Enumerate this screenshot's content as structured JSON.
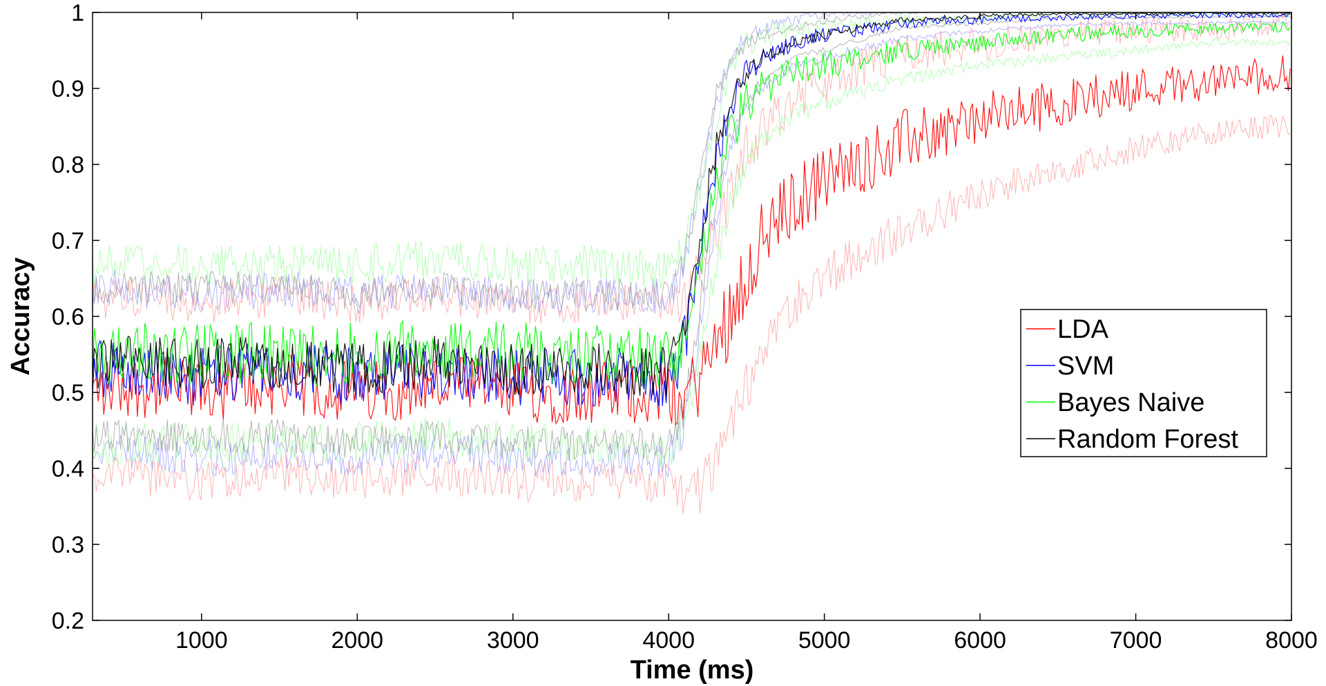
{
  "chart_data": {
    "type": "line",
    "title": "",
    "xlabel": "Time (ms)",
    "ylabel": "Accuracy",
    "xlim": [
      300,
      8000
    ],
    "ylim": [
      0.2,
      1.0
    ],
    "xticks": [
      1000,
      2000,
      3000,
      4000,
      5000,
      6000,
      7000,
      8000
    ],
    "xtick_labels": [
      "1000",
      "2000",
      "3000",
      "4000",
      "5000",
      "6000",
      "7000",
      "8000"
    ],
    "yticks": [
      0.2,
      0.3,
      0.4,
      0.5,
      0.6,
      0.7,
      0.8,
      0.9,
      1.0
    ],
    "ytick_labels": [
      "0.2",
      "0.3",
      "0.4",
      "0.5",
      "0.6",
      "0.7",
      "0.8",
      "0.9",
      "1"
    ],
    "grid": false,
    "legend_position": "right",
    "x": [
      300,
      500,
      1000,
      1500,
      2000,
      2500,
      3000,
      3500,
      4000,
      4100,
      4200,
      4300,
      4400,
      4500,
      4600,
      4800,
      5000,
      5500,
      6000,
      6500,
      7000,
      7500,
      8000
    ],
    "series": [
      {
        "name": "LDA",
        "color": "#ff0000",
        "band_color": "#ff9a9a",
        "values": [
          0.5,
          0.51,
          0.5,
          0.51,
          0.5,
          0.51,
          0.5,
          0.5,
          0.5,
          0.49,
          0.52,
          0.56,
          0.61,
          0.66,
          0.7,
          0.75,
          0.78,
          0.83,
          0.86,
          0.88,
          0.9,
          0.91,
          0.92
        ],
        "spread": [
          0.12,
          0.12,
          0.12,
          0.12,
          0.12,
          0.12,
          0.12,
          0.12,
          0.12,
          0.13,
          0.15,
          0.16,
          0.16,
          0.16,
          0.15,
          0.14,
          0.13,
          0.12,
          0.1,
          0.09,
          0.08,
          0.07,
          0.07
        ]
      },
      {
        "name": "SVM",
        "color": "#0000ff",
        "band_color": "#9a9aff",
        "values": [
          0.53,
          0.53,
          0.52,
          0.53,
          0.52,
          0.53,
          0.52,
          0.52,
          0.52,
          0.56,
          0.68,
          0.8,
          0.88,
          0.92,
          0.94,
          0.96,
          0.97,
          0.985,
          0.99,
          0.993,
          0.995,
          0.996,
          0.997
        ],
        "spread": [
          0.11,
          0.11,
          0.11,
          0.11,
          0.11,
          0.11,
          0.11,
          0.11,
          0.11,
          0.11,
          0.1,
          0.08,
          0.06,
          0.05,
          0.04,
          0.03,
          0.03,
          0.02,
          0.015,
          0.01,
          0.01,
          0.01,
          0.01
        ]
      },
      {
        "name": "Bayes Naive",
        "color": "#00ff00",
        "band_color": "#9aff9a",
        "values": [
          0.55,
          0.55,
          0.55,
          0.55,
          0.55,
          0.56,
          0.55,
          0.55,
          0.54,
          0.57,
          0.66,
          0.76,
          0.84,
          0.88,
          0.9,
          0.92,
          0.93,
          0.95,
          0.96,
          0.97,
          0.975,
          0.98,
          0.98
        ],
        "spread": [
          0.12,
          0.12,
          0.12,
          0.12,
          0.12,
          0.12,
          0.12,
          0.12,
          0.12,
          0.12,
          0.11,
          0.1,
          0.09,
          0.08,
          0.07,
          0.06,
          0.05,
          0.04,
          0.03,
          0.03,
          0.025,
          0.02,
          0.02
        ]
      },
      {
        "name": "Random Forest",
        "color": "#000000",
        "band_color": "#9a9a9a",
        "values": [
          0.54,
          0.54,
          0.54,
          0.54,
          0.53,
          0.54,
          0.53,
          0.53,
          0.53,
          0.57,
          0.7,
          0.82,
          0.89,
          0.92,
          0.94,
          0.96,
          0.97,
          0.99,
          0.995,
          0.998,
          0.998,
          0.999,
          0.999
        ],
        "spread": [
          0.1,
          0.1,
          0.1,
          0.1,
          0.1,
          0.1,
          0.1,
          0.1,
          0.1,
          0.1,
          0.09,
          0.07,
          0.05,
          0.04,
          0.03,
          0.02,
          0.02,
          0.01,
          0.01,
          0.005,
          0.005,
          0.005,
          0.005
        ]
      }
    ]
  }
}
